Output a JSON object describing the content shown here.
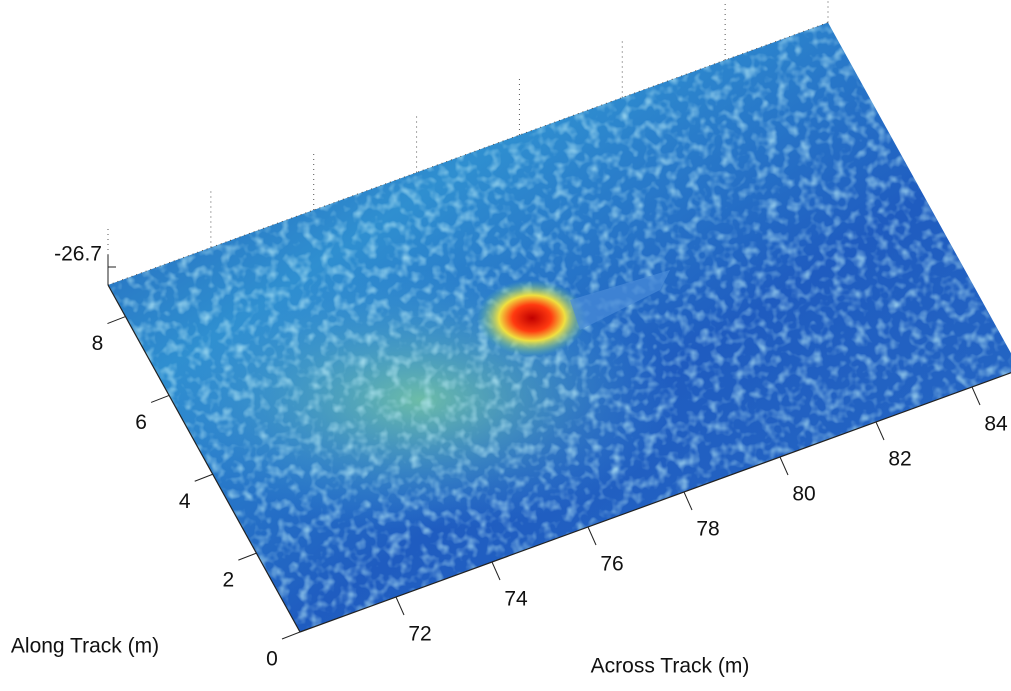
{
  "chart_data": {
    "type": "surface",
    "xlabel": "Across Track (m)",
    "ylabel": "Along Track (m)",
    "xlim": [
      70,
      85
    ],
    "xticks": [
      72,
      74,
      76,
      78,
      80,
      82,
      84
    ],
    "ylim": [
      0,
      8.8
    ],
    "yticks": [
      0,
      2,
      4,
      6,
      8
    ],
    "zticks": [
      -26.7
    ]
  }
}
